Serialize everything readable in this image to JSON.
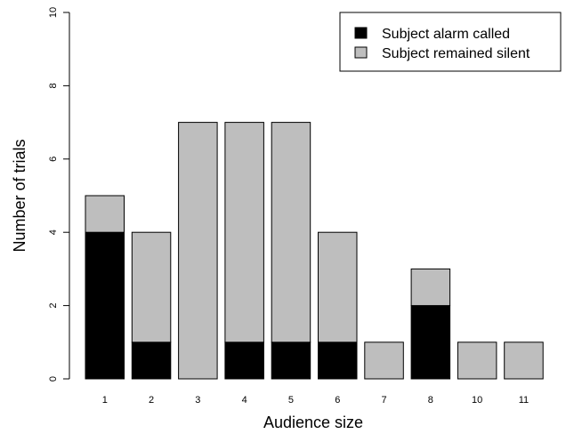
{
  "chart_data": {
    "type": "bar",
    "stacked": true,
    "categories": [
      "1",
      "2",
      "3",
      "4",
      "5",
      "6",
      "7",
      "8",
      "10",
      "11"
    ],
    "series": [
      {
        "name": "Subject alarm called",
        "values": [
          4,
          1,
          0,
          1,
          1,
          1,
          0,
          2,
          0,
          0
        ],
        "color": "#000000"
      },
      {
        "name": "Subject remained silent",
        "values": [
          1,
          3,
          7,
          6,
          6,
          3,
          1,
          1,
          1,
          1
        ],
        "color": "#bebebe"
      }
    ],
    "title": "",
    "xlabel": "Audience size",
    "ylabel": "Number of trials",
    "ylim": [
      0,
      10
    ],
    "yticks": [
      0,
      2,
      4,
      6,
      8,
      10
    ],
    "grid": false,
    "legend_position": "top-right"
  }
}
